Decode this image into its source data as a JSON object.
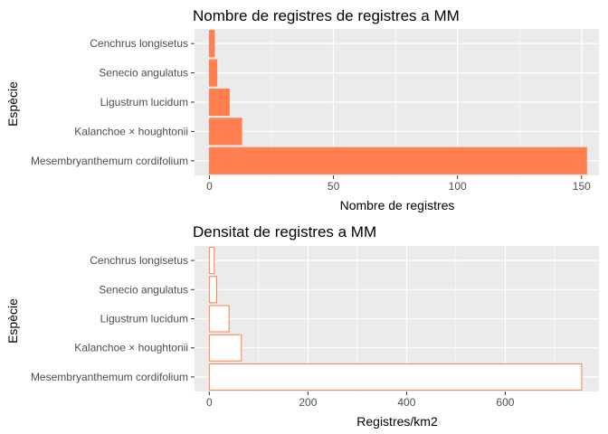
{
  "chart_data": [
    {
      "type": "bar",
      "orientation": "horizontal",
      "title": "Nombre de registres de registres a MM",
      "xlabel": "Nombre de registres",
      "ylabel": "Espècie",
      "categories": [
        "Cenchrus longisetus",
        "Senecio angulatus",
        "Ligustrum lucidum",
        "Kalanchoe × houghtonii",
        "Mesembryanthemum cordifolium"
      ],
      "values": [
        2,
        3,
        8,
        13,
        152
      ],
      "xlim": [
        -6,
        157
      ],
      "xticks": [
        0,
        50,
        100,
        150
      ],
      "xtick_labels": [
        "0",
        "50",
        "100",
        "150"
      ],
      "grid": true,
      "fill_color": "#FF7F50",
      "outline_color": "#FF7F50",
      "panel_color": "#EBEBEB"
    },
    {
      "type": "bar",
      "orientation": "horizontal",
      "title": "Densitat de registres a MM",
      "xlabel": "Registres/km2",
      "ylabel": "Espècie",
      "categories": [
        "Cenchrus longisetus",
        "Senecio angulatus",
        "Ligustrum lucidum",
        "Kalanchoe × houghtonii",
        "Mesembryanthemum cordifolium"
      ],
      "values": [
        10,
        15,
        40,
        65,
        755
      ],
      "xlim": [
        -30,
        790
      ],
      "xticks": [
        0,
        200,
        400,
        600
      ],
      "xtick_labels": [
        "0",
        "200",
        "400",
        "600"
      ],
      "grid": true,
      "fill_color": "#FFFFFF",
      "outline_color": "#FF7F50",
      "panel_color": "#EBEBEB"
    }
  ]
}
